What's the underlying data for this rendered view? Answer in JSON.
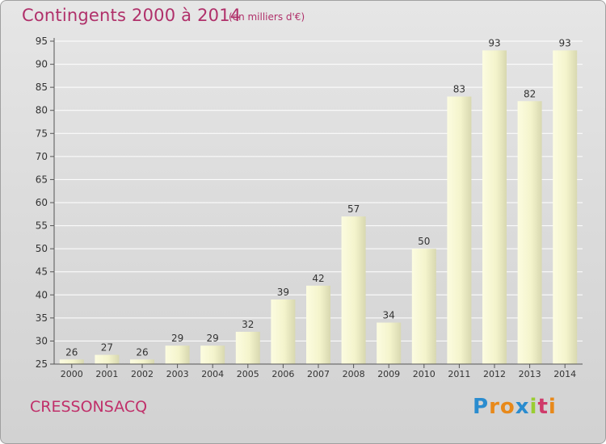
{
  "header": {
    "title": "Contingents 2000 à 2014",
    "subtitle": "(en milliers d'€)"
  },
  "footer": {
    "place": "CRESSONSACQ",
    "logo_letters": [
      "P",
      "r",
      "o",
      "x",
      "i",
      "t",
      "i"
    ],
    "logo_colors": [
      "#2a8ccf",
      "#e8891a",
      "#e8891a",
      "#2a8ccf",
      "#9acd32",
      "#cf3a6a",
      "#e8891a"
    ]
  },
  "colors": {
    "bar_light": "#fbfbdc",
    "bar_dark": "#dcdcb4",
    "grid": "#ffffff",
    "axis_text": "#333333"
  },
  "chart_data": {
    "type": "bar",
    "title": "Contingents 2000 à 2014",
    "subtitle": "(en milliers d'€)",
    "categories": [
      "2000",
      "2001",
      "2002",
      "2003",
      "2004",
      "2005",
      "2006",
      "2007",
      "2008",
      "2009",
      "2010",
      "2011",
      "2012",
      "2013",
      "2014"
    ],
    "values": [
      26,
      27,
      26,
      29,
      29,
      32,
      39,
      42,
      57,
      34,
      50,
      83,
      93,
      82,
      93
    ],
    "ylim": [
      25,
      95
    ],
    "yticks": [
      "25",
      "30",
      "35",
      "40",
      "45",
      "50",
      "55",
      "60",
      "65",
      "70",
      "75",
      "80",
      "85",
      "90",
      "95"
    ],
    "grid": true,
    "xlabel": "",
    "ylabel": ""
  }
}
